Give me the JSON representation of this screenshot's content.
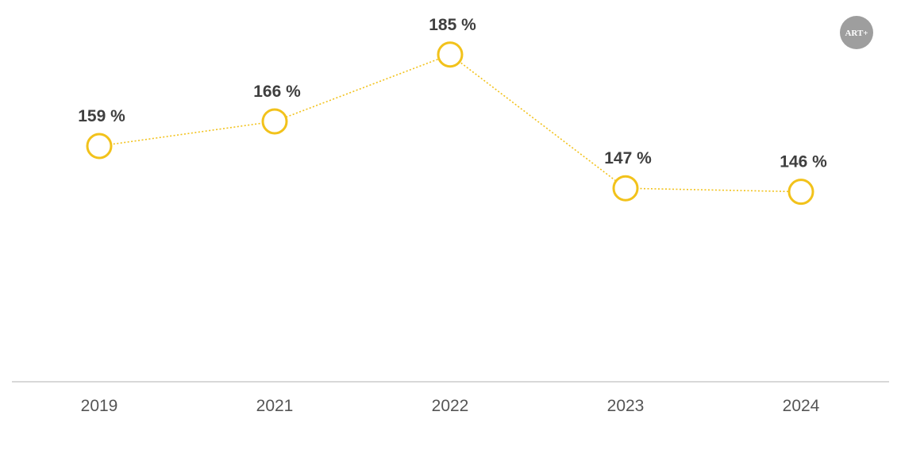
{
  "logo": {
    "text": "ART+",
    "color": "#9e9e9e"
  },
  "colors": {
    "line": "#f2c21b",
    "axis": "#cccccc",
    "label": "#3f3f3f",
    "tick": "#555555"
  },
  "chart_data": {
    "type": "line",
    "categories": [
      "2019",
      "2021",
      "2022",
      "2023",
      "2024"
    ],
    "series": [
      {
        "values": [
          159,
          166,
          185,
          147,
          146
        ]
      }
    ],
    "data_labels": [
      "159 %",
      "166 %",
      "185 %",
      "147 %",
      "146 %"
    ],
    "title": "",
    "xlabel": "",
    "ylabel": "",
    "ylim": [
      92,
      196
    ],
    "grid": false,
    "legend": "none"
  }
}
